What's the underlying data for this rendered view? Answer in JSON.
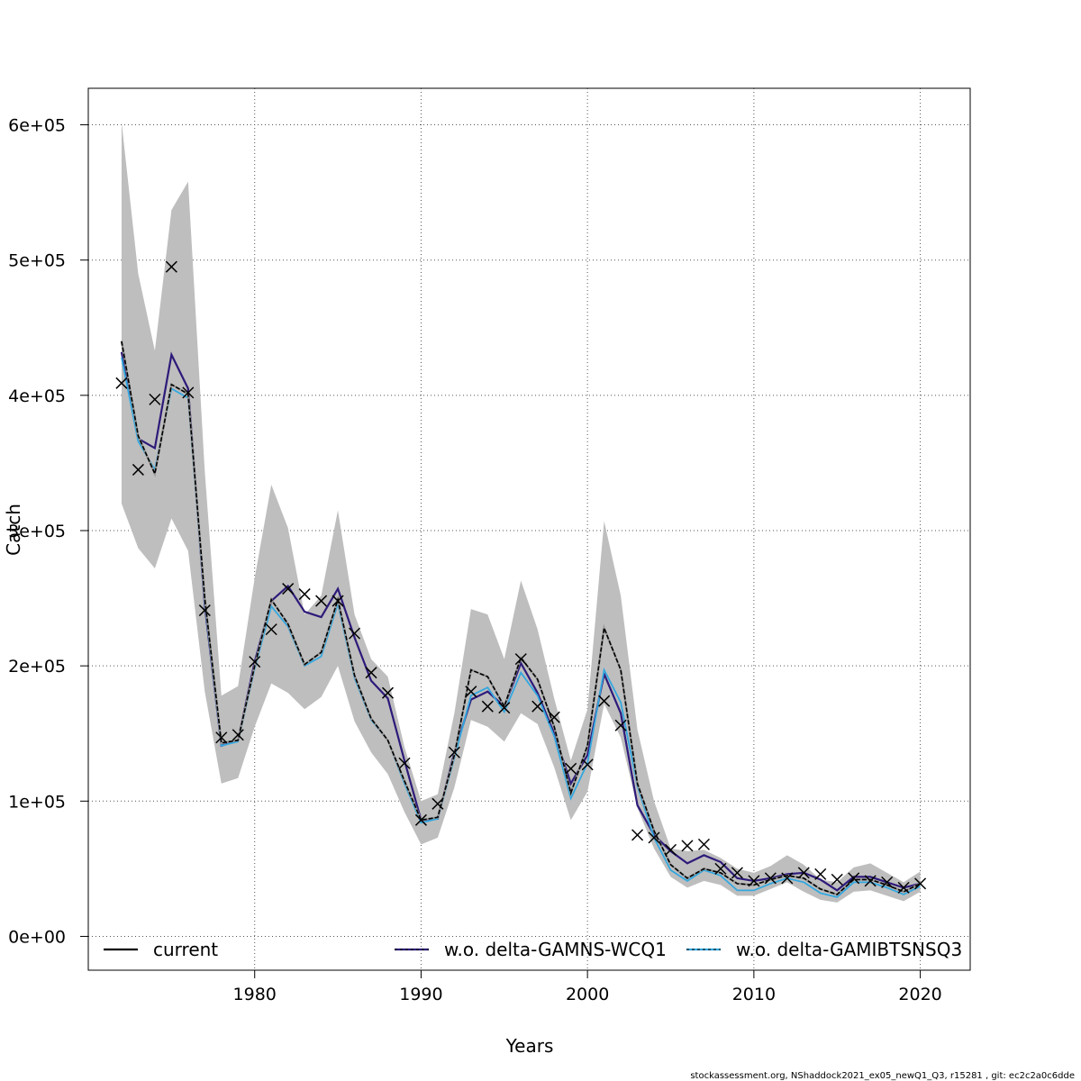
{
  "chart_data": {
    "type": "line",
    "title": "",
    "xlabel": "Years",
    "ylabel": "Catch",
    "xlim": [
      1970,
      2023
    ],
    "ylim": [
      -25000,
      627000
    ],
    "grid": true,
    "legend_position": "bottom",
    "x_ticks": [
      1980,
      1990,
      2000,
      2010,
      2020
    ],
    "x_tick_labels": [
      "1980",
      "1990",
      "2000",
      "2010",
      "2020"
    ],
    "y_ticks": [
      0,
      100000,
      200000,
      300000,
      400000,
      500000,
      600000
    ],
    "y_tick_labels": [
      "0e+00",
      "1e+05",
      "2e+05",
      "3e+05",
      "4e+05",
      "5e+05",
      "6e+05"
    ],
    "x": [
      1972,
      1973,
      1974,
      1975,
      1976,
      1977,
      1978,
      1979,
      1980,
      1981,
      1982,
      1983,
      1984,
      1985,
      1986,
      1987,
      1988,
      1989,
      1990,
      1991,
      1992,
      1993,
      1994,
      1995,
      1996,
      1997,
      1998,
      1999,
      2000,
      2001,
      2002,
      2003,
      2004,
      2005,
      2006,
      2007,
      2008,
      2009,
      2010,
      2011,
      2012,
      2013,
      2014,
      2015,
      2016,
      2017,
      2018,
      2019,
      2020
    ],
    "band": {
      "color": "#bebebe",
      "lower": [
        320000,
        287000,
        272000,
        309000,
        285000,
        181000,
        113000,
        117000,
        155000,
        187000,
        180000,
        168000,
        177000,
        200000,
        159000,
        136000,
        120000,
        92000,
        68000,
        73000,
        110000,
        160000,
        155000,
        144000,
        165000,
        157000,
        125000,
        86000,
        107000,
        172000,
        147000,
        95000,
        65000,
        44000,
        36000,
        41000,
        38000,
        30000,
        30000,
        35000,
        40000,
        33000,
        27000,
        25000,
        33000,
        34000,
        30000,
        26000,
        33000
      ],
      "upper": [
        602000,
        490000,
        433000,
        537000,
        558000,
        344000,
        178000,
        185000,
        265000,
        334000,
        302000,
        238000,
        252000,
        315000,
        238000,
        205000,
        192000,
        140000,
        100000,
        105000,
        165000,
        242000,
        238000,
        205000,
        263000,
        227000,
        176000,
        130000,
        168000,
        307000,
        252000,
        153000,
        100000,
        65000,
        63000,
        64000,
        58000,
        50000,
        47000,
        52000,
        60000,
        53000,
        42000,
        40000,
        51000,
        54000,
        47000,
        40000,
        48000
      ]
    },
    "observed": {
      "marker": "x",
      "color": "#000000",
      "values": [
        409000,
        345000,
        397000,
        495000,
        402000,
        241000,
        147000,
        149000,
        203000,
        227000,
        257000,
        253000,
        248000,
        248000,
        224000,
        195000,
        180000,
        128000,
        86000,
        98000,
        136000,
        181000,
        170000,
        169000,
        205000,
        170000,
        162000,
        124000,
        127000,
        174000,
        156000,
        75000,
        73000,
        64000,
        67000,
        68000,
        50000,
        47000,
        41000,
        43000,
        43000,
        47000,
        46000,
        42000,
        43000,
        41000,
        40000,
        36000,
        39000
      ]
    },
    "series": [
      {
        "name": "current",
        "color": "#000000",
        "style": "solid",
        "values": [
          440000,
          370000,
          342000,
          408000,
          401000,
          250000,
          143000,
          145000,
          200000,
          249000,
          231000,
          201000,
          210000,
          249000,
          193000,
          161000,
          145000,
          115000,
          86000,
          88000,
          134000,
          197000,
          192000,
          170000,
          206000,
          190000,
          155000,
          106000,
          141000,
          228000,
          197000,
          113000,
          78000,
          53000,
          43000,
          50000,
          47000,
          39000,
          38000,
          42000,
          45000,
          43000,
          35000,
          31000,
          42000,
          42000,
          38000,
          33000,
          39000
        ]
      },
      {
        "name": "w.o. delta-GAMNS-WCQ1",
        "color": "#2e1a7a",
        "style": "solid",
        "values": [
          432000,
          368000,
          361000,
          430000,
          405000,
          245000,
          141000,
          145000,
          203000,
          248000,
          259000,
          240000,
          236000,
          257000,
          221000,
          189000,
          176000,
          130000,
          86000,
          87000,
          136000,
          175000,
          181000,
          170000,
          202000,
          180000,
          150000,
          113000,
          134000,
          194000,
          165000,
          97000,
          75000,
          63000,
          54000,
          60000,
          55000,
          43000,
          41000,
          43000,
          46000,
          47000,
          42000,
          34000,
          44000,
          44000,
          40000,
          36000,
          39000
        ]
      },
      {
        "name": "w.o. delta-GAMIBTSNSQ3",
        "color": "#33a8e0",
        "style": "dotted",
        "values": [
          428000,
          366000,
          345000,
          405000,
          398000,
          247000,
          141000,
          144000,
          198000,
          244000,
          229000,
          200000,
          207000,
          246000,
          191000,
          160000,
          145000,
          113000,
          84000,
          87000,
          132000,
          178000,
          184000,
          166000,
          195000,
          178000,
          148000,
          102000,
          128000,
          197000,
          173000,
          111000,
          73000,
          49000,
          41000,
          49000,
          45000,
          34000,
          34000,
          39000,
          43000,
          40000,
          32000,
          29000,
          40000,
          40000,
          36000,
          31000,
          37000
        ]
      }
    ]
  },
  "footer": "stockassessment.org, NShaddock2021_ex05_newQ1_Q3, r15281 , git: ec2c2a0c6dde"
}
